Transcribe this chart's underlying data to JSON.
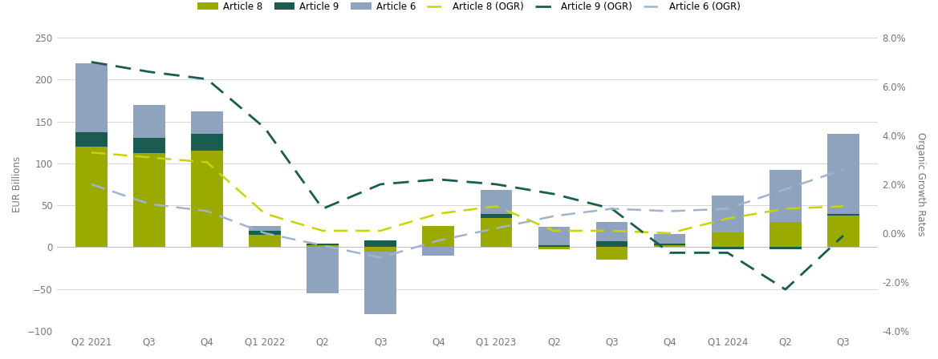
{
  "categories": [
    "Q2 2021",
    "Q3",
    "Q4",
    "Q1 2022",
    "Q2",
    "Q3",
    "Q4",
    "Q1 2023",
    "Q2",
    "Q3",
    "Q4",
    "Q1 2024",
    "Q2",
    "Q3"
  ],
  "art8_bars": [
    120,
    112,
    115,
    15,
    2,
    -5,
    25,
    35,
    -2,
    -15,
    2,
    18,
    30,
    38
  ],
  "art9_bars": [
    17,
    18,
    20,
    5,
    2,
    8,
    0,
    5,
    2,
    7,
    2,
    -2,
    -2,
    2
  ],
  "art6_bars": [
    82,
    40,
    27,
    5,
    -55,
    -75,
    -10,
    28,
    22,
    23,
    12,
    44,
    62,
    95
  ],
  "art8_ogr": [
    3.3,
    3.1,
    2.9,
    0.8,
    0.1,
    0.1,
    0.8,
    1.1,
    0.1,
    0.1,
    0.0,
    0.6,
    1.0,
    1.1
  ],
  "art9_ogr": [
    7.0,
    6.6,
    6.3,
    4.3,
    1.0,
    2.0,
    2.2,
    2.0,
    1.6,
    1.0,
    -0.8,
    -0.8,
    -2.3,
    -0.1
  ],
  "art6_ogr": [
    2.0,
    1.2,
    0.9,
    0.0,
    -0.5,
    -1.0,
    -0.3,
    0.2,
    0.7,
    1.0,
    0.9,
    1.0,
    1.8,
    2.6
  ],
  "bar_width": 0.55,
  "art8_color": "#9aaa00",
  "art9_color": "#1a5c50",
  "art6_color": "#8fa3be",
  "art8_ogr_color": "#c8d400",
  "art9_ogr_color": "#1a5c50",
  "art6_ogr_color": "#a0b4cf",
  "ylim_left": [
    -100,
    250
  ],
  "ylim_right": [
    -4.0,
    8.0
  ],
  "ylabel_left": "EUR Billions",
  "ylabel_right": "Organic Growth Rates",
  "legend_labels": [
    "Article 8",
    "Article 9",
    "Article 6",
    "Article 8 (OGR)",
    "Article 9 (OGR)",
    "Article 6 (OGR)"
  ],
  "background_color": "#ffffff",
  "grid_color": "#d0d0d0"
}
